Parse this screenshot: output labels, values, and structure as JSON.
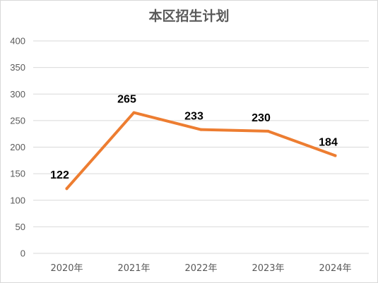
{
  "chart_data": {
    "type": "line",
    "title": "本区招生计划",
    "categories": [
      "2020年",
      "2021年",
      "2022年",
      "2023年",
      "2024年"
    ],
    "series": [
      {
        "values": [
          122,
          265,
          233,
          230,
          184
        ],
        "color": "#ED7D31"
      }
    ],
    "ylim": [
      0,
      400
    ],
    "yticks": [
      0,
      50,
      100,
      150,
      200,
      250,
      300,
      350,
      400
    ],
    "grid": true,
    "data_labels": true,
    "legend": "none"
  }
}
